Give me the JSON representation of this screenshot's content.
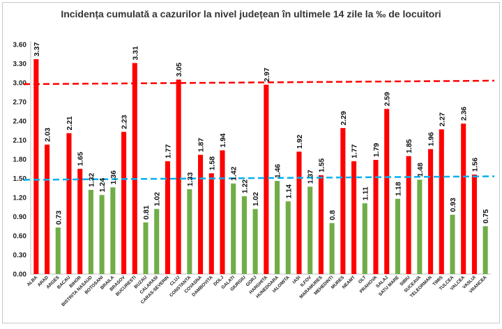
{
  "chart_data": {
    "type": "bar",
    "title": "Incidența cumulată a cazurilor la nivel județean în ultimele 14 zile la ‰ de locuitori",
    "xlabel": "",
    "ylabel": "",
    "ylim": [
      0,
      3.6
    ],
    "yticks": [
      "0.00",
      "0.30",
      "0.60",
      "0.90",
      "1.20",
      "1.50",
      "1.80",
      "2.10",
      "2.40",
      "2.70",
      "3.00",
      "3.30",
      "3.60"
    ],
    "grid": false,
    "categories": [
      "ALBA",
      "ARAD",
      "ARGES",
      "BACAU",
      "BIHOR",
      "BISTRITA NASAUD",
      "BOTOSANI",
      "BRAILA",
      "BRASOV",
      "BUCURESTI",
      "BUZAU",
      "CALARASI",
      "CARAS-SEVERIN",
      "CLUJ",
      "CONSTANTA",
      "COVASNA",
      "DAMBOVITA",
      "DOLJ",
      "GALATI",
      "GIURGIU",
      "GORJ",
      "HARGHITA",
      "HUNEDOARA",
      "IALOMITA",
      "IASI",
      "ILFOV",
      "MARAMURES",
      "MEHEDINTI",
      "MURES",
      "NEAMT",
      "OLT",
      "PRAHOVA",
      "SALAJ",
      "SATU MARE",
      "SIBIU",
      "SUCEAVA",
      "TELEORMAN",
      "TIMIS",
      "TULCEA",
      "VALCEA",
      "VASLUI",
      "VRANCEA"
    ],
    "values": [
      3.37,
      2.03,
      0.73,
      2.21,
      1.65,
      1.32,
      1.24,
      1.36,
      2.23,
      3.31,
      0.81,
      1.02,
      1.77,
      3.05,
      1.33,
      1.87,
      1.58,
      1.94,
      1.42,
      1.22,
      1.02,
      2.97,
      1.46,
      1.14,
      1.92,
      1.37,
      1.55,
      0.8,
      2.29,
      1.77,
      1.11,
      1.79,
      2.59,
      1.18,
      1.85,
      1.48,
      1.96,
      2.27,
      0.93,
      2.36,
      1.56,
      0.75
    ],
    "value_labels": [
      "3.37",
      "2.03",
      "0.73",
      "2.21",
      "1.65",
      "1.32",
      "1.24",
      "1.36",
      "2.23",
      "3.31",
      "0.81",
      "1.02",
      "1.77",
      "3.05",
      "1.33",
      "1.87",
      "1.58",
      "1.94",
      "1.42",
      "1.22",
      "1.02",
      "2.97",
      "1.46",
      "1.14",
      "1.92",
      "1.37",
      "1.55",
      "0.8",
      "2.29",
      "1.77",
      "1.11",
      "1.79",
      "2.59",
      "1.18",
      "1.85",
      "1.48",
      "1.96",
      "2.27",
      "0.93",
      "2.36",
      "1.56",
      "0.75"
    ],
    "threshold_high": 3.0,
    "threshold_low": 1.5,
    "colors": {
      "above": "#ff0000",
      "below": "#70ad47",
      "high_line": "#ff0000",
      "low_line": "#00b0f0"
    }
  }
}
